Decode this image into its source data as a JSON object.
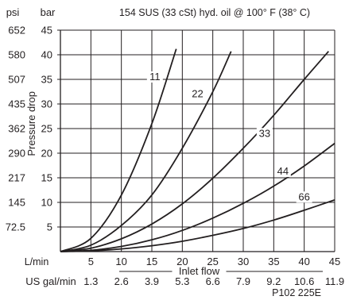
{
  "chart_data": {
    "type": "line",
    "title": "154 SUS (33 cSt) hyd. oil @ 100° F (38° C)",
    "xlabel": "Inlet flow",
    "ylabel": "Pressure drop",
    "y_unit_primary": "bar",
    "y_unit_secondary": "psi",
    "x_unit_primary": "L/min",
    "x_unit_secondary": "US gal/min",
    "xlim": [
      0,
      45
    ],
    "ylim": [
      0,
      45
    ],
    "grid": true,
    "x_ticks": [
      {
        "v": 5,
        "label": "5"
      },
      {
        "v": 10,
        "label": "10"
      },
      {
        "v": 15,
        "label": "15"
      },
      {
        "v": 20,
        "label": "20"
      },
      {
        "v": 25,
        "label": "25"
      },
      {
        "v": 30,
        "label": "30"
      },
      {
        "v": 35,
        "label": "35"
      },
      {
        "v": 40,
        "label": "40"
      },
      {
        "v": 45,
        "label": "45"
      }
    ],
    "y_ticks": [
      {
        "v": 5,
        "label": "5"
      },
      {
        "v": 10,
        "label": "10"
      },
      {
        "v": 15,
        "label": "15"
      },
      {
        "v": 20,
        "label": "20"
      },
      {
        "v": 25,
        "label": "25"
      },
      {
        "v": 30,
        "label": "30"
      },
      {
        "v": 35,
        "label": "35"
      },
      {
        "v": 40,
        "label": "40"
      },
      {
        "v": 45,
        "label": "45"
      }
    ],
    "x_secondary_ticks": [
      {
        "v": 5,
        "label": "1.3"
      },
      {
        "v": 10,
        "label": "2.6"
      },
      {
        "v": 15,
        "label": "3.9"
      },
      {
        "v": 20,
        "label": "5.3"
      },
      {
        "v": 25,
        "label": "6.6"
      },
      {
        "v": 30,
        "label": "7.9"
      },
      {
        "v": 35,
        "label": "9.2"
      },
      {
        "v": 40,
        "label": "10.6"
      },
      {
        "v": 45,
        "label": "11.9"
      }
    ],
    "y_secondary_ticks": [
      {
        "v": 5,
        "label": "72.5"
      },
      {
        "v": 10,
        "label": "145"
      },
      {
        "v": 15,
        "label": "217"
      },
      {
        "v": 20,
        "label": "290"
      },
      {
        "v": 25,
        "label": "362"
      },
      {
        "v": 30,
        "label": "435"
      },
      {
        "v": 35,
        "label": "507"
      },
      {
        "v": 40,
        "label": "580"
      },
      {
        "v": 45,
        "label": "652"
      }
    ],
    "series": [
      {
        "name": "11",
        "x": [
          0,
          5,
          10,
          15,
          19
        ],
        "y": [
          0,
          2.7,
          11.5,
          26,
          41.2
        ],
        "label_at": [
          15.5,
          35
        ]
      },
      {
        "name": "22",
        "x": [
          0,
          5,
          10,
          15,
          20,
          25,
          28
        ],
        "y": [
          0,
          1.3,
          5.3,
          11.5,
          21,
          32.5,
          40.7
        ],
        "label_at": [
          22.5,
          31.5
        ]
      },
      {
        "name": "33",
        "x": [
          0,
          5,
          10,
          15,
          20,
          25,
          30,
          35,
          40,
          44
        ],
        "y": [
          0,
          0.7,
          2.6,
          5.6,
          9.7,
          14.9,
          21,
          27.7,
          35,
          40.7
        ],
        "label_at": [
          33.5,
          23.5
        ]
      },
      {
        "name": "44",
        "x": [
          0,
          5,
          10,
          15,
          20,
          25,
          30,
          35,
          40,
          45
        ],
        "y": [
          0,
          0.25,
          1.05,
          2.4,
          4.3,
          6.8,
          9.8,
          13.3,
          17.4,
          22
        ],
        "label_at": [
          36.5,
          15.8
        ]
      },
      {
        "name": "66",
        "x": [
          0,
          5,
          10,
          15,
          20,
          25,
          30,
          35,
          40,
          45
        ],
        "y": [
          0,
          0.15,
          0.55,
          1.2,
          2.1,
          3.3,
          4.7,
          6.4,
          8.4,
          10.5
        ],
        "label_at": [
          40,
          10.6
        ]
      }
    ],
    "code": "P102 225E"
  }
}
